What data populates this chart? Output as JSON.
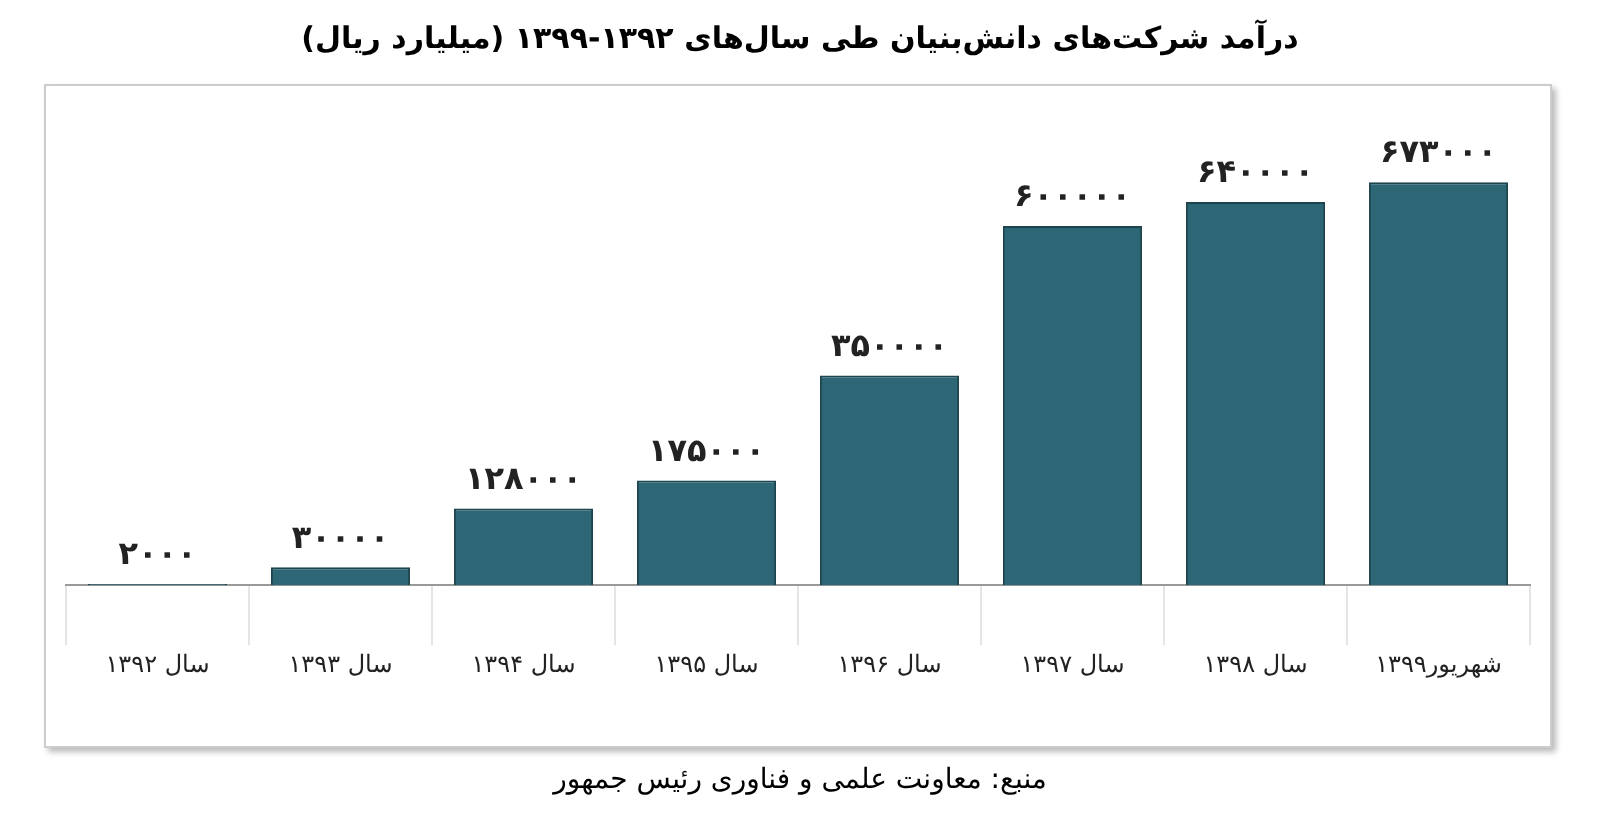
{
  "chart_data": {
    "type": "bar",
    "title": "درآمد شرکت‌های دانش‌بنیان طی سال‌های ۱۳۹۲-۱۳۹۹ (میلیارد ریال)",
    "categories": [
      "سال ۱۳۹۲",
      "سال ۱۳۹۳",
      "سال ۱۳۹۴",
      "سال ۱۳۹۵",
      "سال ۱۳۹۶",
      "سال ۱۳۹۷",
      "سال ۱۳۹۸",
      "شهریور۱۳۹۹"
    ],
    "values": [
      2000,
      30000,
      128000,
      175000,
      350000,
      600000,
      640000,
      673000
    ],
    "value_labels": [
      "۲۰۰۰",
      "۳۰۰۰۰",
      "۱۲۸۰۰۰",
      "۱۷۵۰۰۰",
      "۳۵۰۰۰۰",
      "۶۰۰۰۰۰",
      "۶۴۰۰۰۰",
      "۶۷۳۰۰۰"
    ],
    "color": "#2d6674",
    "annotations": [
      "منبع: معاونت علمی و فناوری رئیس جمهور"
    ]
  }
}
